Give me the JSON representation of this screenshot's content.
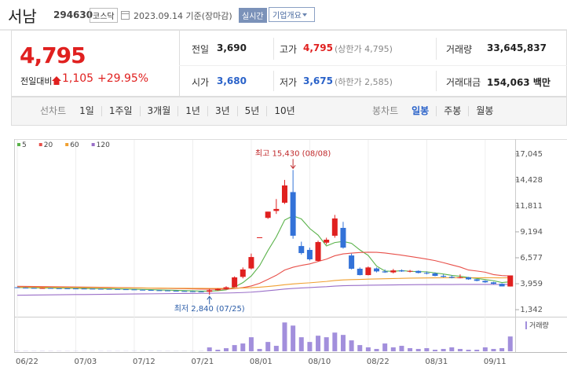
{
  "header": {
    "name": "서남",
    "code": "294630",
    "market": "코스닥",
    "date": "2023.09.14 기준(장마감)",
    "badge": "실시간",
    "button": "기업개요"
  },
  "quote": {
    "price": "4,795",
    "change_label": "전일대비",
    "change": "1,105",
    "change_pct": "+29.95%",
    "color": "#e0201f"
  },
  "stats": [
    [
      {
        "label": "전일",
        "value": "3,690"
      },
      {
        "label": "고가",
        "value": "4,795",
        "note": "(상한가 4,795)",
        "color": "#e0201f"
      },
      {
        "label": "거래량",
        "value": "33,645,837"
      }
    ],
    [
      {
        "label": "시가",
        "value": "3,680",
        "color": "#2a62c9"
      },
      {
        "label": "저가",
        "value": "3,675",
        "note": "(하한가 2,585)",
        "color": "#2a62c9"
      },
      {
        "label": "거래대금",
        "value": "154,063 백만"
      }
    ]
  ],
  "line_tabs": {
    "label": "선차트",
    "items": [
      "1일",
      "1주일",
      "3개월",
      "1년",
      "3년",
      "5년",
      "10년"
    ]
  },
  "candle_tabs": {
    "label": "봉차트",
    "items": [
      "일봉",
      "주봉",
      "월봉"
    ],
    "active_index": 0
  },
  "chart_data": {
    "type": "candlestick",
    "categories": [
      "06/22",
      null,
      null,
      null,
      null,
      null,
      null,
      "07/03",
      null,
      null,
      null,
      null,
      null,
      null,
      "07/12",
      null,
      null,
      null,
      null,
      null,
      null,
      "07/21",
      null,
      null,
      null,
      null,
      null,
      null,
      "08/01",
      null,
      null,
      null,
      null,
      null,
      null,
      "08/10",
      null,
      null,
      null,
      null,
      null,
      null,
      "08/22",
      null,
      null,
      null,
      null,
      null,
      null,
      "08/31",
      null,
      null,
      null,
      null,
      null,
      null,
      "09/11",
      null,
      null,
      null
    ],
    "open": [
      3600,
      3560,
      3540,
      3520,
      3530,
      3500,
      3490,
      3480,
      3470,
      3460,
      3450,
      3440,
      3420,
      3400,
      3380,
      3350,
      3330,
      3300,
      3280,
      3250,
      3220,
      3200,
      3180,
      3150,
      3300,
      3450,
      3600,
      4650,
      5500,
      8640,
      10600,
      11300,
      12130,
      13200,
      7760,
      7370,
      6260,
      8100,
      8800,
      9590,
      6810,
      5470,
      4830,
      5500,
      5200,
      5100,
      5300,
      5200,
      5250,
      5050,
      5000,
      4750,
      4650,
      4550,
      4600,
      4400,
      4250,
      4100,
      3950,
      3680
    ],
    "high": [
      3620,
      3590,
      3570,
      3560,
      3540,
      3520,
      3510,
      3500,
      3490,
      3480,
      3470,
      3450,
      3440,
      3420,
      3400,
      3370,
      3350,
      3320,
      3300,
      3270,
      3240,
      3220,
      3200,
      3450,
      3500,
      3700,
      4700,
      5600,
      7000,
      8640,
      11230,
      12500,
      14430,
      15430,
      8200,
      7600,
      8300,
      8600,
      10900,
      10200,
      7000,
      5600,
      5700,
      5600,
      5400,
      5450,
      5400,
      5350,
      5300,
      5200,
      5100,
      4900,
      4800,
      4900,
      4650,
      4450,
      4300,
      4150,
      4000,
      4795
    ],
    "low": [
      3540,
      3520,
      3500,
      3500,
      3480,
      3470,
      3460,
      3450,
      3440,
      3430,
      3420,
      3400,
      3380,
      3360,
      3330,
      3310,
      3280,
      3260,
      3230,
      3200,
      3180,
      3140,
      3100,
      2840,
      3250,
      3400,
      3580,
      4500,
      5400,
      8640,
      10500,
      11000,
      12000,
      8500,
      6900,
      6300,
      6200,
      7900,
      8600,
      7500,
      5400,
      4800,
      4800,
      5100,
      5050,
      5000,
      5150,
      5100,
      5000,
      4900,
      4700,
      4600,
      4500,
      4500,
      4350,
      4200,
      4050,
      3900,
      3700,
      3675
    ],
    "close": [
      3560,
      3540,
      3520,
      3530,
      3500,
      3490,
      3480,
      3470,
      3460,
      3450,
      3440,
      3420,
      3400,
      3380,
      3350,
      3330,
      3300,
      3280,
      3250,
      3220,
      3200,
      3180,
      3150,
      3300,
      3450,
      3600,
      4600,
      5400,
      6650,
      8640,
      11230,
      11500,
      13870,
      8800,
      7050,
      6420,
      8160,
      8400,
      10540,
      7600,
      5470,
      4830,
      5600,
      5200,
      5100,
      5300,
      5200,
      5250,
      5050,
      5000,
      4750,
      4650,
      4550,
      4600,
      4400,
      4250,
      4100,
      3950,
      3690,
      4795
    ],
    "up_color": "#e0201f",
    "down_color": "#3372d8",
    "series": [
      {
        "name": "5",
        "color": "#5ab24a",
        "values": [
          3580,
          3565,
          3550,
          3540,
          3530,
          3515,
          3505,
          3495,
          3480,
          3465,
          3455,
          3445,
          3430,
          3415,
          3400,
          3380,
          3360,
          3335,
          3315,
          3290,
          3265,
          3240,
          3215,
          3210,
          3256,
          3336,
          3620,
          4070,
          4740,
          5778,
          7304,
          8684,
          10378,
          10808,
          10490,
          9528,
          8860,
          7766,
          8114,
          8224,
          8034,
          7368,
          6808,
          5740,
          5240,
          5206,
          5280,
          5210,
          5180,
          5160,
          5050,
          4940,
          4800,
          4710,
          4590,
          4490,
          4380,
          4260,
          4078,
          4157
        ]
      },
      {
        "name": "20",
        "color": "#e8504a",
        "values": [
          3700,
          3690,
          3680,
          3670,
          3660,
          3650,
          3640,
          3630,
          3620,
          3610,
          3600,
          3590,
          3575,
          3560,
          3545,
          3530,
          3515,
          3500,
          3485,
          3470,
          3455,
          3440,
          3420,
          3410,
          3405,
          3410,
          3470,
          3570,
          3730,
          4000,
          4400,
          4810,
          5340,
          5620,
          5810,
          5960,
          6200,
          6440,
          6780,
          6970,
          7050,
          7110,
          7140,
          7130,
          7060,
          6950,
          6840,
          6710,
          6580,
          6440,
          6290,
          6080,
          5860,
          5640,
          5340,
          5240,
          5120,
          4880,
          4780,
          4740
        ]
      },
      {
        "name": "60",
        "color": "#f0a030",
        "values": [
          3620,
          3614,
          3608,
          3602,
          3596,
          3590,
          3584,
          3578,
          3572,
          3566,
          3560,
          3554,
          3548,
          3542,
          3536,
          3530,
          3524,
          3518,
          3512,
          3506,
          3500,
          3494,
          3488,
          3485,
          3485,
          3490,
          3505,
          3530,
          3560,
          3610,
          3680,
          3760,
          3860,
          3940,
          4000,
          4050,
          4120,
          4190,
          4280,
          4340,
          4370,
          4390,
          4420,
          4440,
          4460,
          4480,
          4500,
          4520,
          4530,
          4540,
          4550,
          4555,
          4560,
          4565,
          4565,
          4565,
          4560,
          4555,
          4545,
          4560
        ]
      },
      {
        "name": "120",
        "color": "#9a6fc8",
        "values": [
          2800,
          2810,
          2820,
          2830,
          2840,
          2845,
          2855,
          2865,
          2870,
          2880,
          2890,
          2900,
          2905,
          2915,
          2925,
          2935,
          2940,
          2950,
          2960,
          2970,
          2975,
          2985,
          2990,
          3000,
          3010,
          3020,
          3040,
          3070,
          3110,
          3170,
          3250,
          3330,
          3420,
          3480,
          3530,
          3570,
          3620,
          3660,
          3720,
          3760,
          3780,
          3790,
          3810,
          3820,
          3830,
          3840,
          3850,
          3860,
          3865,
          3870,
          3875,
          3880,
          3880,
          3885,
          3885,
          3885,
          3885,
          3885,
          3880,
          3900
        ]
      }
    ],
    "volume": {
      "name": "거래량",
      "color": "#a28fdc",
      "ylim": [
        0,
        75000000
      ],
      "values": [
        420000,
        380000,
        350000,
        400000,
        360000,
        330000,
        300000,
        310000,
        290000,
        280000,
        300000,
        320000,
        290000,
        270000,
        310000,
        280000,
        260000,
        300000,
        290000,
        270000,
        260000,
        300000,
        350000,
        8800000,
        3500000,
        7000000,
        14100000,
        17700000,
        31900000,
        5300000,
        21200000,
        12400000,
        65500000,
        58400000,
        31900000,
        21200000,
        35400000,
        31900000,
        42500000,
        37200000,
        24800000,
        14100000,
        8900000,
        5300000,
        17700000,
        8900000,
        12400000,
        7100000,
        5300000,
        7100000,
        3500000,
        5300000,
        8900000,
        5300000,
        3500000,
        3500000,
        8900000,
        5300000,
        7100000,
        33645837
      ]
    },
    "ylim": [
      870,
      18070
    ],
    "yticks": [
      {
        "value": 17045,
        "label": "17,045"
      },
      {
        "value": 14428,
        "label": "14,428"
      },
      {
        "value": 11811,
        "label": "11,811"
      },
      {
        "value": 9194,
        "label": "9,194"
      },
      {
        "value": 6577,
        "label": "6,577"
      },
      {
        "value": 3959,
        "label": "3,959"
      },
      {
        "value": 1342,
        "label": "1,342"
      }
    ],
    "annotations": [
      {
        "text": "최고 15,430 (08/08)",
        "point": "max",
        "color": "#c0292b"
      },
      {
        "text": "최저 2,840 (07/25)",
        "point": "min",
        "color": "#2a5ca8"
      }
    ],
    "grid": true
  }
}
